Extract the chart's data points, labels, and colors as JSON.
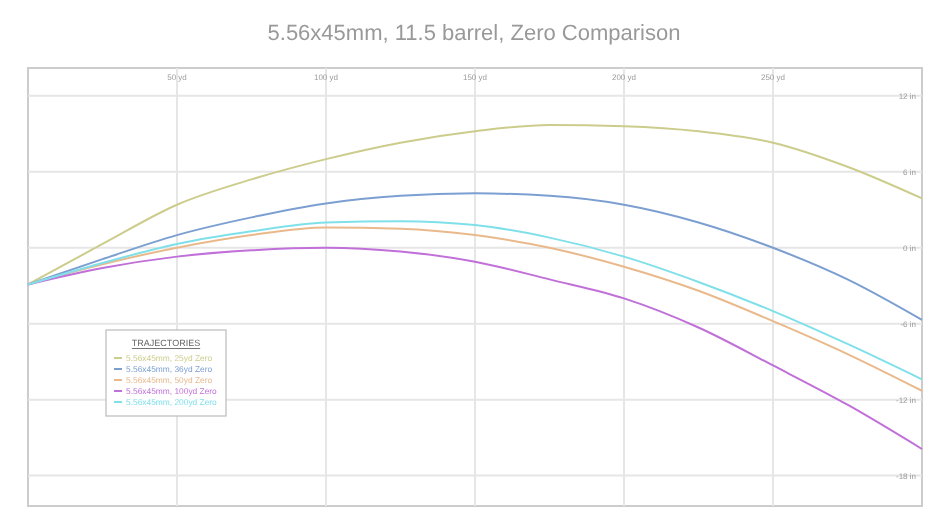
{
  "chart_data": {
    "type": "line",
    "title": "5.56x45mm, 11.5 barrel, Zero Comparison",
    "legend_title": "TRAJECTORIES",
    "legend": "left",
    "grid": true,
    "marker": "none",
    "line_style": "solid",
    "x": [
      0,
      25,
      50,
      75,
      100,
      125,
      150,
      175,
      200,
      225,
      250,
      275,
      300
    ],
    "xlim": [
      0,
      300
    ],
    "xticks": [
      {
        "value": 50,
        "label": "50 yd"
      },
      {
        "value": 100,
        "label": "100 yd"
      },
      {
        "value": 150,
        "label": "150 yd"
      },
      {
        "value": 200,
        "label": "200 yd"
      },
      {
        "value": 250,
        "label": "250 yd"
      }
    ],
    "ylim": [
      -20.4,
      14.2
    ],
    "yticks": [
      {
        "value": -18,
        "label": "-18 in"
      },
      {
        "value": -12,
        "label": "-12 in"
      },
      {
        "value": -6,
        "label": "-6 in"
      },
      {
        "value": 0,
        "label": "0 in"
      },
      {
        "value": 6,
        "label": "6 in"
      },
      {
        "value": 12,
        "label": "12 in"
      }
    ],
    "series": [
      {
        "name": "5.56x45mm, 25yd Zero",
        "color": "#cccc8c",
        "values": [
          -2.9,
          0.3,
          3.4,
          5.4,
          7.0,
          8.3,
          9.2,
          9.7,
          9.6,
          9.2,
          8.3,
          6.4,
          3.9
        ]
      },
      {
        "name": "5.56x45mm, 36yd Zero",
        "color": "#7c9fd2",
        "values": [
          -2.9,
          -0.9,
          1.0,
          2.4,
          3.5,
          4.1,
          4.3,
          4.1,
          3.4,
          2.0,
          0.0,
          -2.5,
          -5.7
        ]
      },
      {
        "name": "5.56x45mm, 50yd Zero",
        "color": "#e9b98c",
        "values": [
          -2.9,
          -1.3,
          0.0,
          1.0,
          1.6,
          1.5,
          1.0,
          0.0,
          -1.5,
          -3.4,
          -5.8,
          -8.4,
          -11.3
        ]
      },
      {
        "name": "5.56x45mm, 100yd Zero",
        "color": "#c070d8",
        "values": [
          -2.9,
          -1.6,
          -0.7,
          -0.2,
          0.0,
          -0.3,
          -1.1,
          -2.5,
          -4.0,
          -6.3,
          -9.3,
          -12.4,
          -15.9
        ]
      },
      {
        "name": "5.56x45mm, 200yd Zero",
        "color": "#80e0ea",
        "values": [
          -2.9,
          -1.2,
          0.3,
          1.3,
          2.0,
          2.1,
          1.8,
          0.8,
          -0.7,
          -2.7,
          -5.0,
          -7.6,
          -10.4
        ]
      }
    ]
  }
}
